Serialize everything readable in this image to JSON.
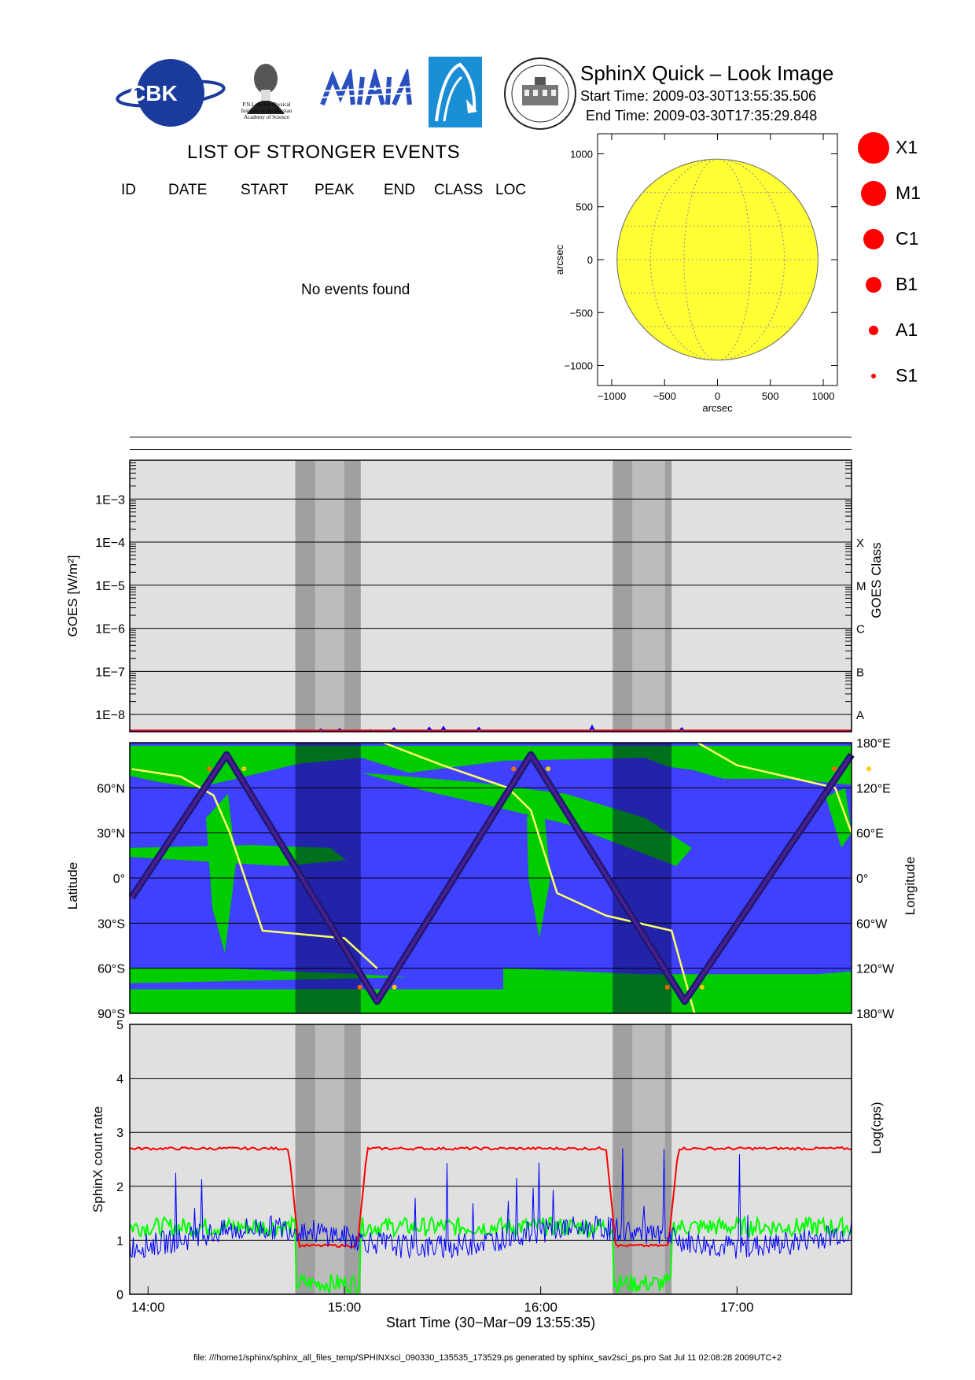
{
  "header": {
    "logos": [
      {
        "name": "cbk-pan-logo",
        "text": "CBK"
      },
      {
        "name": "lebedev-institute-logo",
        "text": [
          "P.N.Lebedev Physical",
          "Institute of the Russian",
          "Academy of Science"
        ]
      },
      {
        "name": "mifi-logo",
        "text": ""
      },
      {
        "name": "astro-logo",
        "text": ""
      },
      {
        "name": "observatory-seal-logo",
        "text": ""
      }
    ],
    "title": "SphinX Quick – Look Image",
    "start_time": "Start Time: 2009-03-30T13:55:35.506",
    "end_time": "End Time: 2009-03-30T17:35:29.848"
  },
  "events": {
    "title": "LIST OF STRONGER EVENTS",
    "columns": [
      "ID",
      "DATE",
      "START",
      "PEAK",
      "END",
      "CLASS",
      "LOC"
    ],
    "empty_message": "No events found"
  },
  "sun_map": {
    "xlabel": "arcsec",
    "ylabel": "arcsec",
    "x_ticks": [
      "−1000",
      "−500",
      "0",
      "500",
      "1000"
    ],
    "y_ticks": [
      "1000",
      "500",
      "0",
      "−500",
      "−1000"
    ],
    "disk_color": "#ffff33"
  },
  "class_legend": [
    {
      "label": "X1",
      "size": 20
    },
    {
      "label": "M1",
      "size": 16
    },
    {
      "label": "C1",
      "size": 13
    },
    {
      "label": "B1",
      "size": 10
    },
    {
      "label": "A1",
      "size": 6
    },
    {
      "label": "S1",
      "size": 3
    }
  ],
  "colors": {
    "panel_bg": "#e0e0e0",
    "eclipse_dark": "#a0a0a0",
    "eclipse_light": "#bcbcbc",
    "sphinx_red": "#ff0000",
    "sphinx_green": "#00ff00",
    "sphinx_blue": "#0000ff",
    "map_blue": "#4040ff",
    "map_green": "#00cc00",
    "longitude_yellow": "#ffff66",
    "track_dark": "#1a1a6e"
  },
  "chart_data": [
    {
      "type": "line",
      "name": "goes-panel",
      "ylabel": "GOES [W/m²]",
      "ylabel_right": "GOES Class",
      "y_scale": "log",
      "y_ticks": [
        "1E−3",
        "1E−4",
        "1E−5",
        "1E−6",
        "1E−7",
        "1E−8"
      ],
      "class_ticks": [
        "X",
        "M",
        "C",
        "B",
        "A"
      ],
      "ylim_exp": [
        -8.4,
        -2.1
      ],
      "flux_level": 4.3e-09,
      "eclipse_intervals": [
        {
          "dark": [
            "14:45",
            "15:05"
          ],
          "light": [
            "14:51",
            "15:00"
          ]
        },
        {
          "dark": [
            "16:22",
            "16:40"
          ],
          "light": [
            "16:28",
            "16:38"
          ]
        }
      ]
    },
    {
      "type": "line",
      "name": "orbit-panel",
      "ylabel": "Latitude",
      "ylabel_right": "Longitude",
      "lat_ticks": [
        "60°N",
        "30°N",
        "0°",
        "30°S",
        "60°S",
        "90°S"
      ],
      "lon_ticks": [
        "180°E",
        "120°E",
        "60°E",
        "0°",
        "60°W",
        "120°W",
        "180°W"
      ],
      "ylim": [
        -90,
        90
      ],
      "latitude_track": {
        "x": [
          "13:55",
          "14:24",
          "15:10",
          "15:57",
          "16:44",
          "17:35"
        ],
        "lat": [
          -13,
          82,
          -82,
          82,
          -82,
          82
        ]
      },
      "longitude_track": {
        "x": [
          "13:55",
          "14:10",
          "14:20",
          "14:25",
          "14:35",
          "15:00",
          "15:10",
          "15:12",
          "15:30",
          "15:50",
          "15:57",
          "16:05",
          "16:20",
          "16:40",
          "16:47",
          "16:48",
          "17:00",
          "17:20",
          "17:30",
          "17:35"
        ],
        "lon": [
          145,
          135,
          110,
          60,
          -70,
          -80,
          -120,
          180,
          150,
          120,
          90,
          -20,
          -50,
          -70,
          -180,
          180,
          150,
          130,
          120,
          60
        ]
      }
    },
    {
      "type": "line",
      "name": "sphinx-panel",
      "ylabel": "SphinX count rate",
      "ylabel_right": "Log(cps)",
      "xlabel": "Start Time (30−Mar−09 13:55:35)",
      "x_ticks": [
        "14:00",
        "15:00",
        "16:00",
        "17:00"
      ],
      "y_ticks": [
        "0",
        "1",
        "2",
        "3",
        "4",
        "5"
      ],
      "ylim": [
        0,
        5
      ],
      "xlim": [
        "13:55",
        "17:35"
      ],
      "series": [
        {
          "color": "red",
          "x": [
            "13:55",
            "14:44",
            "14:46",
            "15:03",
            "15:05",
            "17:35"
          ],
          "values": [
            2.7,
            2.7,
            0.9,
            0.9,
            2.7,
            2.7
          ]
        },
        {
          "color": "green",
          "x": [
            "13:55",
            "17:35"
          ],
          "values": [
            1.3,
            1.3
          ]
        },
        {
          "color": "blue",
          "x": [
            "13:55",
            "14:20",
            "14:55",
            "15:55",
            "16:30",
            "17:20",
            "17:35"
          ],
          "values": [
            0.9,
            1.25,
            0.9,
            1.25,
            0.9,
            1.2,
            1.3
          ]
        }
      ]
    }
  ],
  "footer": "file: ///home1/sphinx/sphinx_all_files_temp/SPHINXsci_090330_135535_173529.ps generated by sphinx_sav2sci_ps.pro Sat Jul 11 02:08:28 2009UTC+2"
}
